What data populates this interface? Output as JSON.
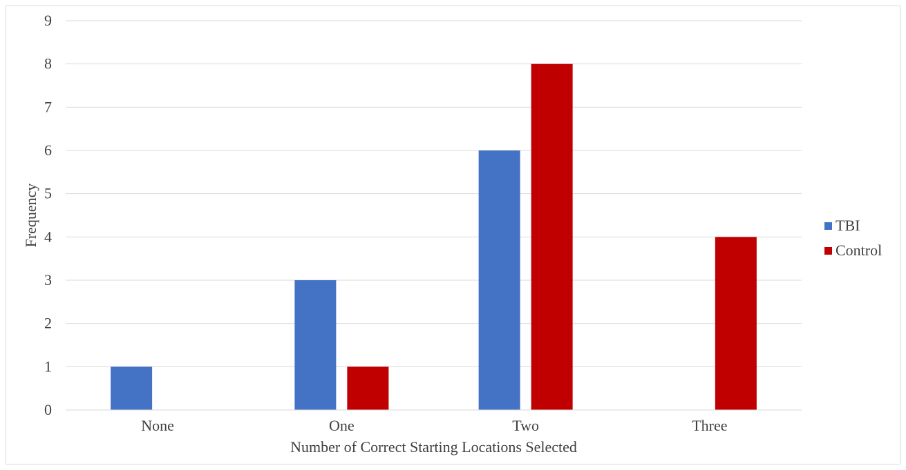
{
  "chart_data": {
    "type": "bar",
    "categories": [
      "None",
      "One",
      "Two",
      "Three"
    ],
    "series": [
      {
        "name": "TBI",
        "values": [
          1,
          3,
          6,
          0
        ],
        "color": "#4472C4"
      },
      {
        "name": "Control",
        "values": [
          0,
          1,
          8,
          4
        ],
        "color": "#C00000"
      }
    ],
    "xlabel": "Number of Correct Starting Locations Selected",
    "ylabel": "Frequency",
    "ylim": [
      0,
      9
    ],
    "yticks": [
      0,
      1,
      2,
      3,
      4,
      5,
      6,
      7,
      8,
      9
    ],
    "grid": true,
    "legend_position": "right"
  }
}
